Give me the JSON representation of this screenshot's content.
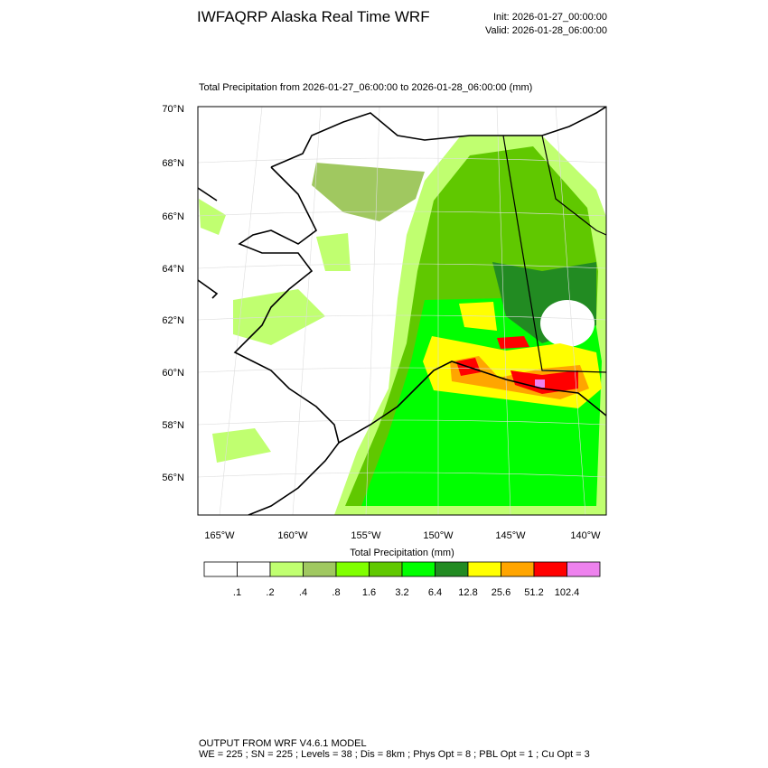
{
  "header": {
    "title": "IWFAQRP Alaska Real Time WRF",
    "init": "Init: 2026-01-27_00:00:00",
    "valid": "Valid: 2026-01-28_06:00:00"
  },
  "map": {
    "title": "Total Precipitation from 2026-01-27_06:00:00 to 2026-01-28_06:00:00   (mm)",
    "lat_labels": [
      "70°N",
      "68°N",
      "66°N",
      "64°N",
      "62°N",
      "60°N",
      "58°N",
      "56°N"
    ],
    "lon_labels": [
      "165°W",
      "160°W",
      "155°W",
      "150°W",
      "145°W",
      "140°W"
    ]
  },
  "colorbar": {
    "title": "Total Precipitation  (mm)",
    "colors": [
      "#ffffff",
      "#ffffff",
      "#c0ff70",
      "#a0c860",
      "#80ff00",
      "#60c800",
      "#00ff00",
      "#228b22",
      "#ffff00",
      "#ffa500",
      "#ff0000",
      "#ee82ee"
    ],
    "labels": [
      ".1",
      ".2",
      ".4",
      ".8",
      "1.6",
      "3.2",
      "6.4",
      "12.8",
      "25.6",
      "51.2",
      "102.4"
    ]
  },
  "footer": {
    "line1": "OUTPUT FROM WRF V4.6.1 MODEL",
    "line2": "WE = 225 ; SN = 225 ; Levels = 38 ; Dis = 8km ; Phys Opt = 8 ; PBL Opt = 1 ; Cu Opt = 3"
  }
}
